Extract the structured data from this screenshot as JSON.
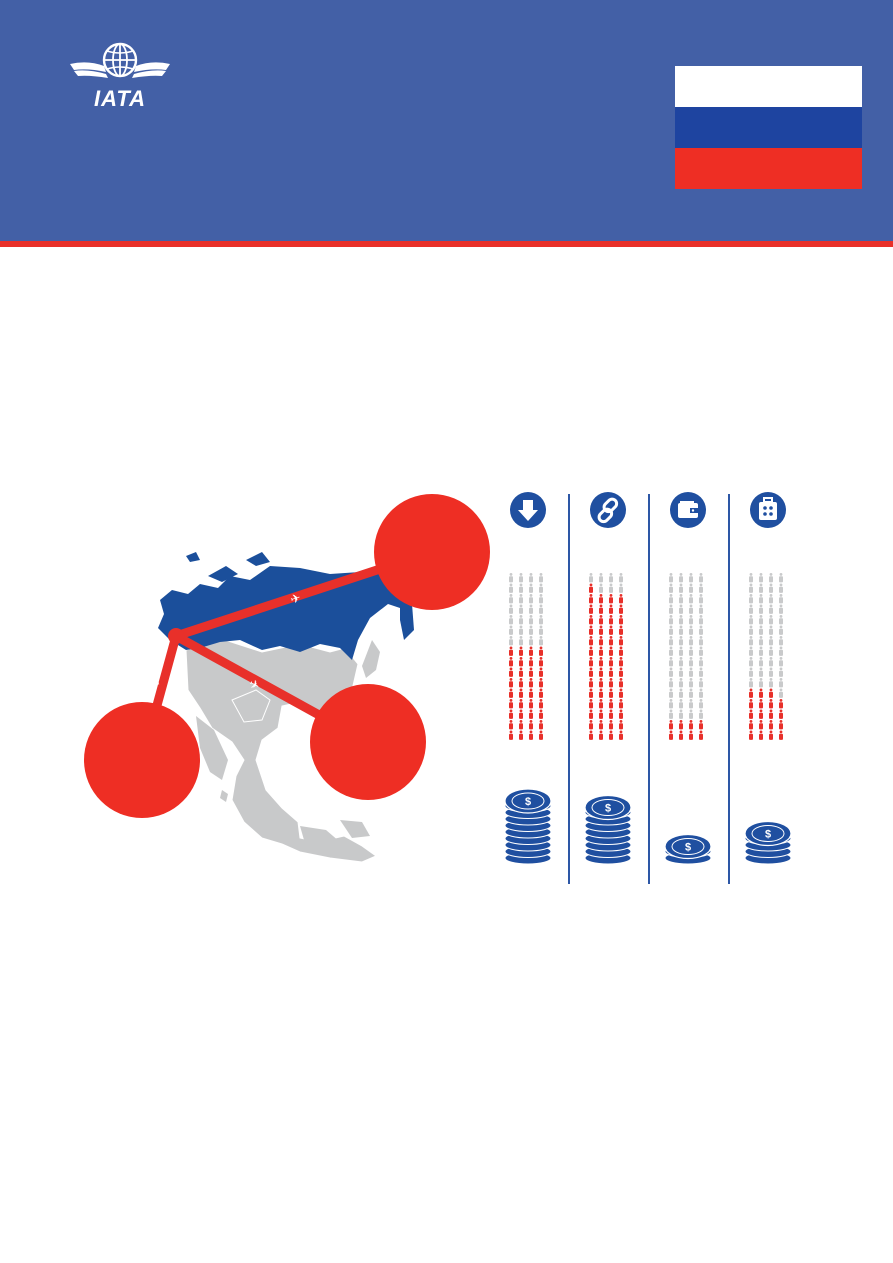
{
  "header": {
    "logo_text": "IATA",
    "logo_icon": "globe-wings-icon",
    "flag": {
      "colors": [
        "#ffffff",
        "#1e44a0",
        "#ee2e24"
      ]
    }
  },
  "colors": {
    "header_bg": "#4360a6",
    "accent_red": "#e8302a",
    "russia_blue": "#1b4f9b",
    "map_grey": "#c8c9ca",
    "people_inactive": "#c9cacb",
    "people_active": "#e8302a",
    "coin_blue": "#1f4fa0"
  },
  "columns": [
    {
      "icon": "arrow-down-icon",
      "people_highlighted": 36,
      "people_total": 64,
      "coin_stack": 9
    },
    {
      "icon": "link-chain-icon",
      "people_highlighted": 57,
      "people_total": 64,
      "coin_stack": 8
    },
    {
      "icon": "wallet-icon",
      "people_highlighted": 8,
      "people_total": 64,
      "coin_stack": 2
    },
    {
      "icon": "luggage-icon",
      "people_highlighted": 19,
      "people_total": 64,
      "coin_stack": 4
    }
  ]
}
